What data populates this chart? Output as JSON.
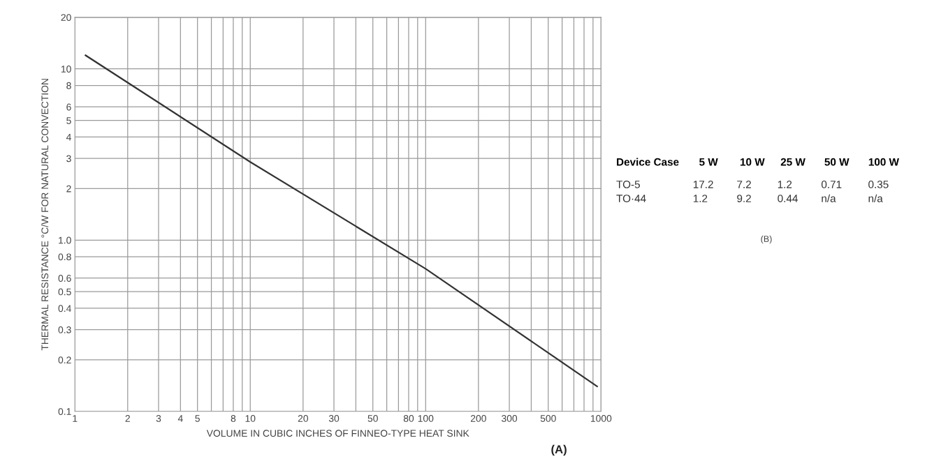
{
  "chart_data": [
    {
      "type": "line",
      "xlabel": "VOLUME IN CUBIC INCHES OF FINNEO-TYPE HEAT SINK",
      "ylabel": "THERMAL RESISTANCE °C/W FOR NATURAL CONVECTION",
      "log": "xy",
      "grid": true,
      "x": [
        1.15,
        10,
        100,
        950
      ],
      "series": [
        {
          "color": "#333333",
          "values": [
            12,
            2.86,
            0.68,
            0.14
          ]
        }
      ],
      "xlim": [
        1,
        1000
      ],
      "xticks": [
        1,
        2,
        3,
        4,
        5,
        {
          "value": 6,
          "label": null
        },
        {
          "value": 7,
          "label": null
        },
        8,
        {
          "value": 9,
          "label": null
        },
        10,
        20,
        30,
        {
          "value": 40,
          "label": null
        },
        50,
        {
          "value": 60,
          "label": null
        },
        {
          "value": 70,
          "label": null
        },
        80,
        {
          "value": 90,
          "label": null
        },
        100,
        200,
        300,
        {
          "value": 400,
          "label": null
        },
        500,
        {
          "value": 600,
          "label": null
        },
        {
          "value": 700,
          "label": null
        },
        {
          "value": 800,
          "label": null
        },
        {
          "value": 900,
          "label": null
        },
        1000
      ],
      "ylim": [
        0.1,
        20
      ],
      "yticks": [
        0.1,
        0.2,
        0.3,
        0.4,
        0.5,
        0.6,
        0.8,
        {
          "value": 1,
          "label": "1.0"
        },
        2,
        3,
        4,
        5,
        6,
        8,
        10,
        20
      ],
      "annotations": [
        "(A)"
      ]
    },
    {
      "type": "other",
      "title": "Device Case",
      "categories": [
        "5 W",
        "10 W",
        "25 W",
        "50 W",
        "100 W"
      ],
      "y_categories": [
        "TO-5",
        "TO·44"
      ],
      "cell_labels": [
        [
          "17.2",
          "7.2",
          "1.2",
          "0.71",
          "0.35"
        ],
        [
          "1.2",
          "9.2",
          "0.44",
          "n/a",
          "n/a"
        ]
      ],
      "annotations": [
        "(B)"
      ]
    }
  ]
}
